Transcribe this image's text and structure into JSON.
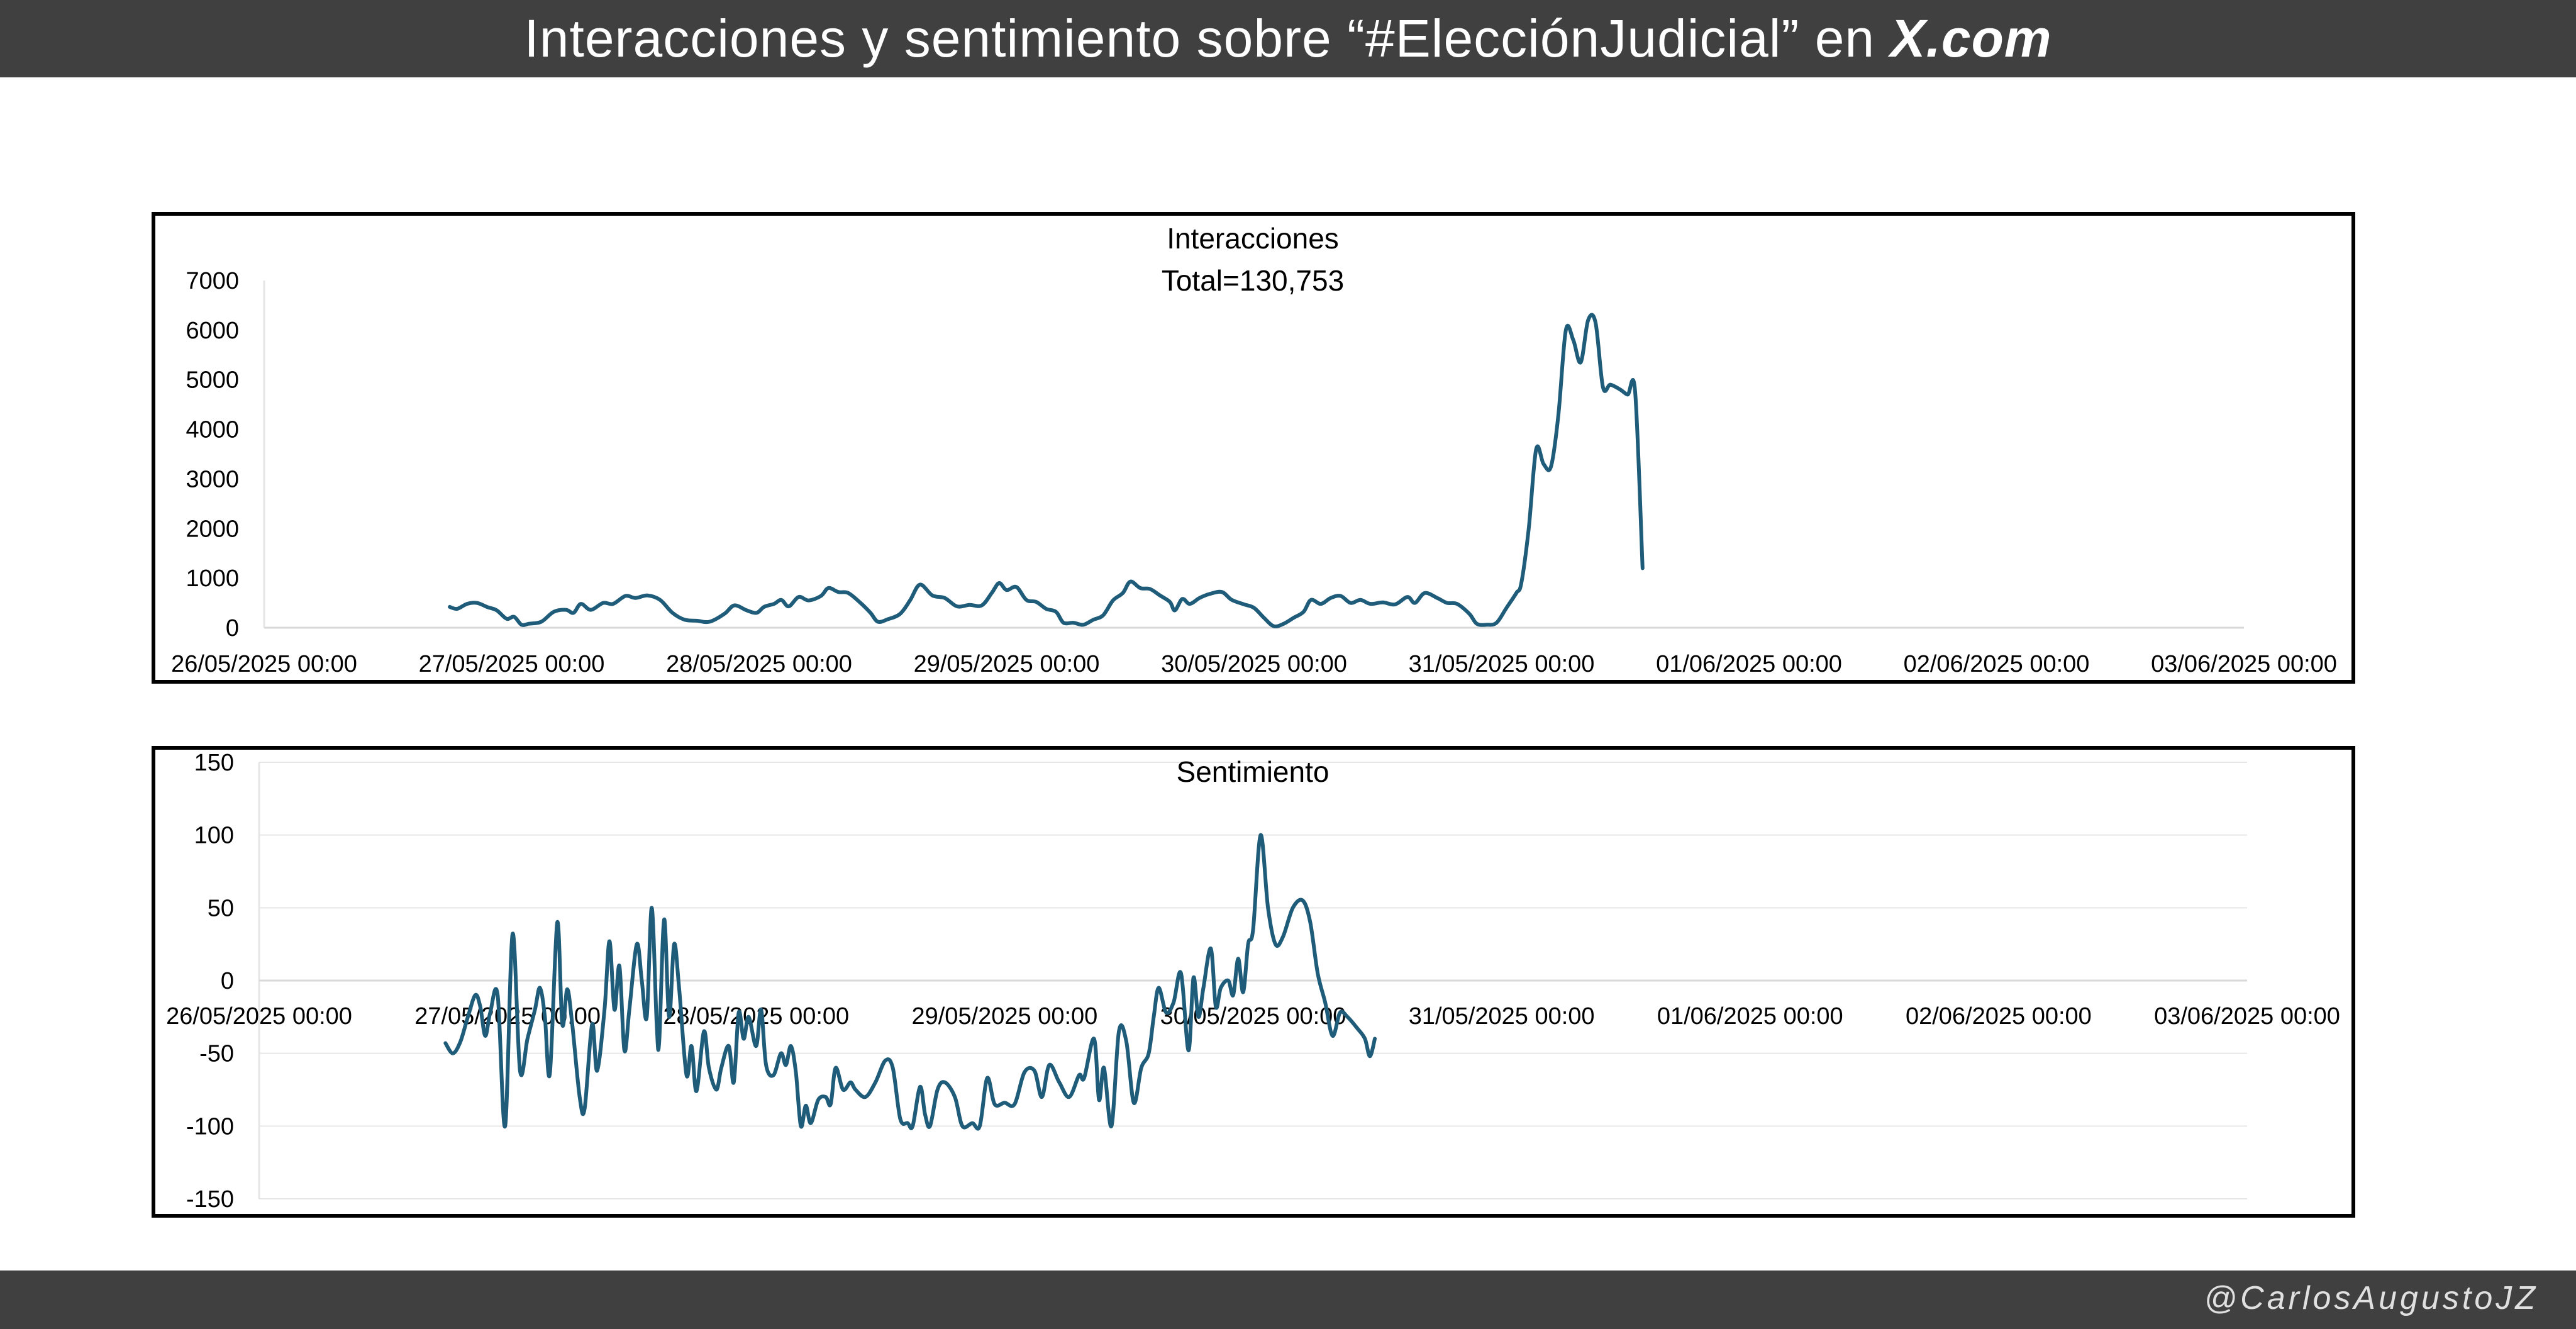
{
  "header": {
    "title_prefix": "Interacciones y sentimiento sobre “#ElecciónJudicial” en ",
    "title_brand": "X.com"
  },
  "footer": {
    "credit": "@CarlosAugustoJZ"
  },
  "colors": {
    "line": "#1f5c7a",
    "bar": "#404040",
    "grid": "#e6e6e6"
  },
  "chart_data": [
    {
      "type": "line",
      "title": "Interacciones",
      "subtitle": "Total=130,753",
      "xlim": [
        "26/05/2025 00:00",
        "03/06/2025 00:00"
      ],
      "ylim": [
        0,
        7000
      ],
      "yticks": [
        0,
        1000,
        2000,
        3000,
        4000,
        5000,
        6000,
        7000
      ],
      "xticks": [
        "26/05/2025 00:00",
        "27/05/2025 00:00",
        "28/05/2025 00:00",
        "29/05/2025 00:00",
        "30/05/2025 00:00",
        "31/05/2025 00:00",
        "01/06/2025 00:00",
        "02/06/2025 00:00",
        "03/06/2025 00:00"
      ],
      "grid": false,
      "series": [
        {
          "points": [
            [
              0.75,
              420
            ],
            [
              0.78,
              380
            ],
            [
              0.82,
              480
            ],
            [
              0.86,
              500
            ],
            [
              0.9,
              420
            ],
            [
              0.94,
              350
            ],
            [
              0.98,
              180
            ],
            [
              1.01,
              220
            ],
            [
              1.04,
              60
            ],
            [
              1.07,
              80
            ],
            [
              1.12,
              120
            ],
            [
              1.17,
              320
            ],
            [
              1.22,
              360
            ],
            [
              1.25,
              300
            ],
            [
              1.28,
              480
            ],
            [
              1.32,
              360
            ],
            [
              1.37,
              500
            ],
            [
              1.41,
              480
            ],
            [
              1.46,
              640
            ],
            [
              1.5,
              600
            ],
            [
              1.55,
              650
            ],
            [
              1.6,
              560
            ],
            [
              1.65,
              300
            ],
            [
              1.7,
              160
            ],
            [
              1.75,
              140
            ],
            [
              1.8,
              120
            ],
            [
              1.86,
              280
            ],
            [
              1.9,
              450
            ],
            [
              1.95,
              350
            ],
            [
              1.99,
              300
            ],
            [
              2.02,
              420
            ],
            [
              2.06,
              480
            ],
            [
              2.09,
              560
            ],
            [
              2.12,
              430
            ],
            [
              2.16,
              620
            ],
            [
              2.2,
              550
            ],
            [
              2.25,
              640
            ],
            [
              2.28,
              800
            ],
            [
              2.32,
              720
            ],
            [
              2.36,
              700
            ],
            [
              2.41,
              500
            ],
            [
              2.45,
              300
            ],
            [
              2.48,
              120
            ],
            [
              2.52,
              170
            ],
            [
              2.57,
              280
            ],
            [
              2.61,
              550
            ],
            [
              2.65,
              870
            ],
            [
              2.7,
              650
            ],
            [
              2.75,
              600
            ],
            [
              2.8,
              430
            ],
            [
              2.85,
              460
            ],
            [
              2.9,
              450
            ],
            [
              2.94,
              700
            ],
            [
              2.97,
              900
            ],
            [
              3.0,
              760
            ],
            [
              3.04,
              820
            ],
            [
              3.08,
              560
            ],
            [
              3.12,
              520
            ],
            [
              3.16,
              380
            ],
            [
              3.2,
              320
            ],
            [
              3.23,
              100
            ],
            [
              3.27,
              100
            ],
            [
              3.31,
              60
            ],
            [
              3.35,
              160
            ],
            [
              3.39,
              250
            ],
            [
              3.43,
              550
            ],
            [
              3.47,
              700
            ],
            [
              3.5,
              930
            ],
            [
              3.54,
              800
            ],
            [
              3.58,
              780
            ],
            [
              3.62,
              650
            ],
            [
              3.66,
              520
            ],
            [
              3.68,
              350
            ],
            [
              3.71,
              580
            ],
            [
              3.74,
              480
            ],
            [
              3.78,
              600
            ],
            [
              3.82,
              680
            ],
            [
              3.87,
              720
            ],
            [
              3.91,
              560
            ],
            [
              3.96,
              470
            ],
            [
              4.0,
              400
            ],
            [
              4.04,
              200
            ],
            [
              4.08,
              30
            ],
            [
              4.12,
              80
            ],
            [
              4.16,
              200
            ],
            [
              4.2,
              320
            ],
            [
              4.23,
              560
            ],
            [
              4.27,
              480
            ],
            [
              4.31,
              600
            ],
            [
              4.35,
              640
            ],
            [
              4.39,
              500
            ],
            [
              4.43,
              560
            ],
            [
              4.47,
              480
            ],
            [
              4.52,
              510
            ],
            [
              4.57,
              470
            ],
            [
              4.62,
              620
            ],
            [
              4.65,
              500
            ],
            [
              4.69,
              700
            ],
            [
              4.74,
              600
            ],
            [
              4.78,
              500
            ],
            [
              4.82,
              480
            ],
            [
              4.87,
              280
            ],
            [
              4.9,
              80
            ],
            [
              4.94,
              60
            ],
            [
              4.98,
              100
            ],
            [
              5.02,
              400
            ],
            [
              5.06,
              700
            ],
            [
              5.08,
              900
            ],
            [
              5.11,
              2000
            ],
            [
              5.14,
              3600
            ],
            [
              5.17,
              3300
            ],
            [
              5.2,
              3250
            ],
            [
              5.23,
              4300
            ],
            [
              5.26,
              6000
            ],
            [
              5.29,
              5800
            ],
            [
              5.32,
              5350
            ],
            [
              5.35,
              6200
            ],
            [
              5.38,
              6150
            ],
            [
              5.41,
              4850
            ],
            [
              5.44,
              4900
            ],
            [
              5.48,
              4800
            ],
            [
              5.51,
              4700
            ],
            [
              5.54,
              4750
            ],
            [
              5.57,
              1200
            ]
          ]
        }
      ]
    },
    {
      "type": "line",
      "title": "Sentimiento",
      "xlim": [
        "26/05/2025 00:00",
        "03/06/2025 00:00"
      ],
      "ylim": [
        -150,
        150
      ],
      "yticks": [
        -150,
        -100,
        -50,
        0,
        50,
        100,
        150
      ],
      "xticks": [
        "26/05/2025 00:00",
        "27/05/2025 00:00",
        "28/05/2025 00:00",
        "29/05/2025 00:00",
        "30/05/2025 00:00",
        "31/05/2025 00:00",
        "01/06/2025 00:00",
        "02/06/2025 00:00",
        "03/06/2025 00:00"
      ],
      "grid": true,
      "series": [
        {
          "points": [
            [
              0.75,
              -43
            ],
            [
              0.78,
              -50
            ],
            [
              0.81,
              -42
            ],
            [
              0.84,
              -25
            ],
            [
              0.87,
              -10
            ],
            [
              0.89,
              -18
            ],
            [
              0.91,
              -38
            ],
            [
              0.93,
              -22
            ],
            [
              0.96,
              -10
            ],
            [
              0.99,
              -100
            ],
            [
              1.02,
              32
            ],
            [
              1.05,
              -62
            ],
            [
              1.08,
              -40
            ],
            [
              1.11,
              -20
            ],
            [
              1.13,
              -5
            ],
            [
              1.15,
              -25
            ],
            [
              1.17,
              -64
            ],
            [
              1.2,
              40
            ],
            [
              1.22,
              -30
            ],
            [
              1.24,
              -6
            ],
            [
              1.26,
              -30
            ],
            [
              1.29,
              -80
            ],
            [
              1.31,
              -88
            ],
            [
              1.34,
              -30
            ],
            [
              1.36,
              -62
            ],
            [
              1.39,
              -20
            ],
            [
              1.41,
              27
            ],
            [
              1.43,
              -20
            ],
            [
              1.45,
              10
            ],
            [
              1.47,
              -48
            ],
            [
              1.49,
              -20
            ],
            [
              1.52,
              25
            ],
            [
              1.54,
              0
            ],
            [
              1.56,
              -25
            ],
            [
              1.58,
              50
            ],
            [
              1.6,
              -30
            ],
            [
              1.61,
              -42
            ],
            [
              1.63,
              42
            ],
            [
              1.65,
              -25
            ],
            [
              1.67,
              25
            ],
            [
              1.69,
              -5
            ],
            [
              1.72,
              -65
            ],
            [
              1.74,
              -45
            ],
            [
              1.76,
              -76
            ],
            [
              1.79,
              -35
            ],
            [
              1.81,
              -60
            ],
            [
              1.84,
              -75
            ],
            [
              1.86,
              -60
            ],
            [
              1.89,
              -45
            ],
            [
              1.91,
              -70
            ],
            [
              1.93,
              -22
            ],
            [
              1.95,
              -40
            ],
            [
              1.97,
              -25
            ],
            [
              2.0,
              -45
            ],
            [
              2.02,
              -20
            ],
            [
              2.04,
              -58
            ],
            [
              2.07,
              -65
            ],
            [
              2.1,
              -50
            ],
            [
              2.12,
              -58
            ],
            [
              2.14,
              -45
            ],
            [
              2.16,
              -63
            ],
            [
              2.18,
              -100
            ],
            [
              2.2,
              -86
            ],
            [
              2.22,
              -98
            ],
            [
              2.25,
              -82
            ],
            [
              2.28,
              -80
            ],
            [
              2.3,
              -85
            ],
            [
              2.32,
              -60
            ],
            [
              2.35,
              -75
            ],
            [
              2.38,
              -70
            ],
            [
              2.4,
              -75
            ],
            [
              2.44,
              -80
            ],
            [
              2.48,
              -70
            ],
            [
              2.52,
              -55
            ],
            [
              2.55,
              -60
            ],
            [
              2.58,
              -95
            ],
            [
              2.61,
              -98
            ],
            [
              2.63,
              -100
            ],
            [
              2.66,
              -73
            ],
            [
              2.68,
              -92
            ],
            [
              2.7,
              -100
            ],
            [
              2.73,
              -75
            ],
            [
              2.76,
              -70
            ],
            [
              2.8,
              -80
            ],
            [
              2.83,
              -100
            ],
            [
              2.87,
              -98
            ],
            [
              2.9,
              -100
            ],
            [
              2.93,
              -67
            ],
            [
              2.96,
              -85
            ],
            [
              3.0,
              -84
            ],
            [
              3.04,
              -85
            ],
            [
              3.08,
              -63
            ],
            [
              3.12,
              -62
            ],
            [
              3.15,
              -80
            ],
            [
              3.18,
              -58
            ],
            [
              3.22,
              -70
            ],
            [
              3.26,
              -80
            ],
            [
              3.3,
              -65
            ],
            [
              3.32,
              -67
            ],
            [
              3.36,
              -40
            ],
            [
              3.38,
              -82
            ],
            [
              3.4,
              -60
            ],
            [
              3.43,
              -100
            ],
            [
              3.46,
              -35
            ],
            [
              3.49,
              -42
            ],
            [
              3.52,
              -84
            ],
            [
              3.55,
              -60
            ],
            [
              3.58,
              -50
            ],
            [
              3.6,
              -25
            ],
            [
              3.62,
              -5
            ],
            [
              3.65,
              -22
            ],
            [
              3.68,
              -15
            ],
            [
              3.71,
              5
            ],
            [
              3.74,
              -48
            ],
            [
              3.76,
              2
            ],
            [
              3.78,
              -25
            ],
            [
              3.8,
              -5
            ],
            [
              3.83,
              22
            ],
            [
              3.85,
              -18
            ],
            [
              3.87,
              -5
            ],
            [
              3.9,
              0
            ],
            [
              3.92,
              -10
            ],
            [
              3.94,
              15
            ],
            [
              3.96,
              -8
            ],
            [
              3.98,
              25
            ],
            [
              4.0,
              35
            ],
            [
              4.03,
              100
            ],
            [
              4.06,
              50
            ],
            [
              4.09,
              25
            ],
            [
              4.12,
              30
            ],
            [
              4.16,
              50
            ],
            [
              4.2,
              55
            ],
            [
              4.23,
              40
            ],
            [
              4.26,
              5
            ],
            [
              4.29,
              -15
            ],
            [
              4.32,
              -38
            ],
            [
              4.35,
              -22
            ],
            [
              4.38,
              -25
            ],
            [
              4.42,
              -33
            ],
            [
              4.45,
              -40
            ],
            [
              4.47,
              -52
            ],
            [
              4.49,
              -40
            ]
          ]
        }
      ]
    }
  ]
}
